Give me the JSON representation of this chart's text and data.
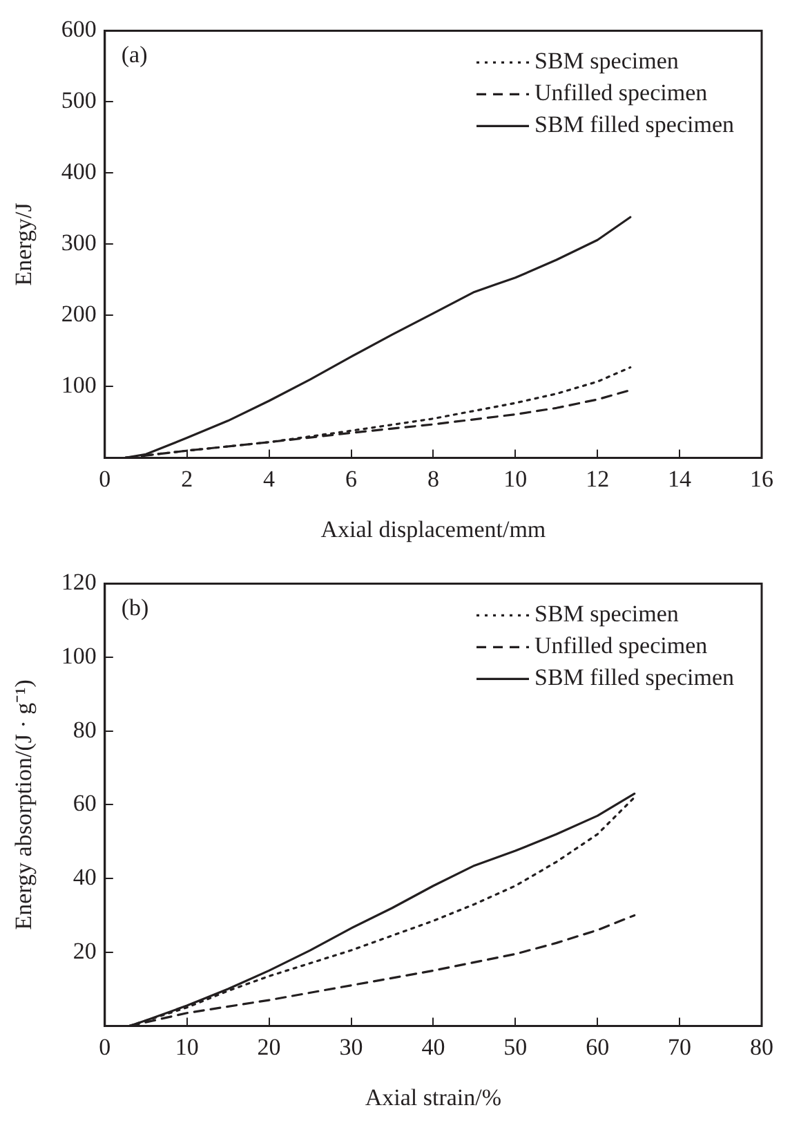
{
  "chart_data": [
    {
      "type": "line",
      "xlabel": "Axial displacement/mm",
      "ylabel": "Energy/J",
      "annotations": [
        "(a)"
      ],
      "xlim": [
        0,
        16
      ],
      "xticks": [
        0,
        2,
        4,
        6,
        8,
        10,
        12,
        14,
        16
      ],
      "ylim": [
        0,
        600
      ],
      "yticks": [
        {
          "value": 0,
          "label": null
        },
        100,
        200,
        300,
        400,
        500,
        600
      ],
      "grid": false,
      "legend": "top right",
      "marker": "none",
      "series": [
        {
          "name": "SBM specimen",
          "color": "#231f20",
          "line_style": "dotted",
          "x": [
            0.5,
            2,
            4,
            6,
            8,
            10,
            11,
            12,
            12.8
          ],
          "values": [
            0,
            10,
            22,
            38,
            55,
            77,
            90,
            107,
            127
          ]
        },
        {
          "name": "Unfilled specimen",
          "color": "#231f20",
          "line_style": "dashed",
          "x": [
            0.5,
            2,
            4,
            6,
            8,
            10,
            11,
            12,
            12.8
          ],
          "values": [
            0,
            10,
            22,
            35,
            47,
            61,
            70,
            82,
            95
          ]
        },
        {
          "name": "SBM filled specimen",
          "color": "#231f20",
          "line_style": "solid",
          "x": [
            0.5,
            1,
            2,
            3,
            4,
            5,
            6,
            7,
            8,
            9,
            9.5,
            10,
            11,
            12,
            12.8
          ],
          "values": [
            0,
            5,
            28,
            52,
            80,
            110,
            142,
            173,
            203,
            233,
            243,
            253,
            278,
            306,
            338
          ]
        }
      ]
    },
    {
      "type": "line",
      "xlabel": "Axial strain/%",
      "ylabel": "Energy absorption/(J · g⁻¹)",
      "annotations": [
        "(b)"
      ],
      "xlim": [
        0,
        80
      ],
      "xticks": [
        0,
        10,
        20,
        30,
        40,
        50,
        60,
        70,
        80
      ],
      "ylim": [
        0,
        120
      ],
      "yticks": [
        {
          "value": 0,
          "label": null
        },
        20,
        40,
        60,
        80,
        100,
        120
      ],
      "grid": false,
      "legend": "top right",
      "marker": "none",
      "series": [
        {
          "name": "SBM specimen",
          "color": "#231f20",
          "line_style": "dotted",
          "x": [
            3,
            10,
            15,
            20,
            25,
            30,
            35,
            40,
            45,
            50,
            55,
            60,
            64.5
          ],
          "values": [
            0,
            5,
            9.5,
            13.5,
            17,
            20.5,
            24.5,
            28.5,
            33,
            38,
            44.5,
            52,
            62
          ]
        },
        {
          "name": "Unfilled specimen",
          "color": "#231f20",
          "line_style": "dashed",
          "x": [
            3,
            10,
            20,
            30,
            40,
            50,
            55,
            60,
            64.5
          ],
          "values": [
            0,
            3.5,
            7,
            11,
            15,
            19.5,
            22.5,
            26,
            30
          ]
        },
        {
          "name": "SBM filled specimen",
          "color": "#231f20",
          "line_style": "solid",
          "x": [
            3,
            5,
            10,
            15,
            20,
            25,
            30,
            35,
            40,
            45,
            50,
            55,
            60,
            64.5
          ],
          "values": [
            0,
            1.5,
            5.5,
            10,
            15,
            20.5,
            26.5,
            32,
            38,
            43.5,
            47.5,
            52,
            57,
            63
          ]
        }
      ]
    }
  ]
}
